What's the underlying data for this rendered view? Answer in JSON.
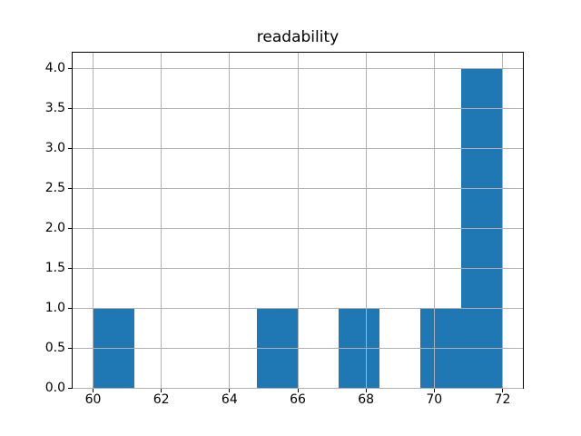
{
  "chart_data": {
    "type": "bar",
    "subtype": "histogram",
    "title": "readability",
    "xlabel": "",
    "ylabel": "",
    "bin_edges": [
      60,
      61.2,
      62.4,
      63.6,
      64.8,
      66,
      67.2,
      68.4,
      69.6,
      70.8,
      72
    ],
    "counts": [
      1,
      0,
      0,
      0,
      1,
      0,
      1,
      0,
      1,
      4
    ],
    "xlim": [
      59.4,
      72.6
    ],
    "ylim": [
      0,
      4.2
    ],
    "x_ticks": [
      60,
      62,
      64,
      66,
      68,
      70,
      72
    ],
    "x_tick_labels": [
      "60",
      "62",
      "64",
      "66",
      "68",
      "70",
      "72"
    ],
    "y_ticks": [
      0,
      0.5,
      1,
      1.5,
      2,
      2.5,
      3,
      3.5,
      4
    ],
    "y_tick_labels": [
      "0.0",
      "0.5",
      "1.0",
      "1.5",
      "2.0",
      "2.5",
      "3.0",
      "3.5",
      "4.0"
    ],
    "grid": true,
    "grid_over_bars": true,
    "legend": null,
    "colors": {
      "bar_fill": "#1f77b4",
      "grid": "#b0b0b0",
      "spine": "#000000",
      "text": "#000000",
      "background": "#ffffff"
    }
  }
}
